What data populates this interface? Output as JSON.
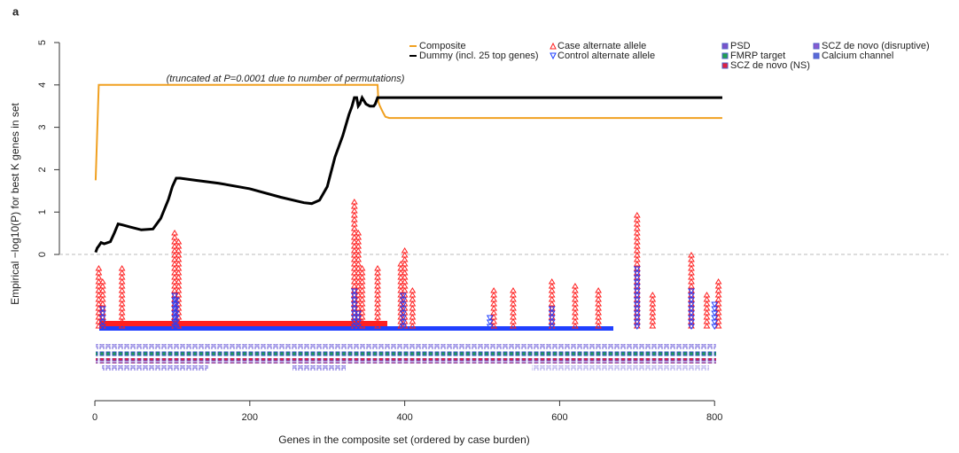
{
  "chart_data": {
    "type": "line",
    "panel_label": "a",
    "annotation": "(truncated at P=0.0001 due to number of permutations)",
    "y_label": "Empirical −log10(P) for best K genes in set",
    "x_label": "Genes in the composite set (ordered by case burden)",
    "xlim": [
      -10,
      820
    ],
    "xticks": [
      0,
      200,
      400,
      600,
      800
    ],
    "ylim": [
      -3.2,
      5
    ],
    "yticks": [
      0,
      1,
      2,
      3,
      4,
      5
    ],
    "series": [
      {
        "name": "Composite",
        "style": "line",
        "color": "#f0a020",
        "x": [
          1,
          5,
          8,
          365,
          366,
          368,
          372,
          375,
          380,
          810
        ],
        "values": [
          1.75,
          4.0,
          4.0,
          4.0,
          3.6,
          3.5,
          3.35,
          3.25,
          3.22,
          3.22
        ]
      },
      {
        "name": "Dummy (incl. 25 top genes)",
        "style": "line",
        "color": "#000000",
        "x": [
          1,
          3,
          5,
          8,
          12,
          20,
          25,
          30,
          35,
          45,
          60,
          75,
          85,
          95,
          100,
          105,
          110,
          130,
          160,
          200,
          240,
          270,
          280,
          290,
          300,
          310,
          320,
          328,
          332,
          335,
          338,
          340,
          342,
          345,
          350,
          355,
          360,
          362,
          365,
          370,
          810
        ],
        "values": [
          0.05,
          0.15,
          0.2,
          0.28,
          0.25,
          0.3,
          0.5,
          0.72,
          0.7,
          0.65,
          0.58,
          0.6,
          0.85,
          1.3,
          1.6,
          1.8,
          1.8,
          1.75,
          1.68,
          1.55,
          1.35,
          1.22,
          1.2,
          1.28,
          1.6,
          2.3,
          2.8,
          3.3,
          3.5,
          3.7,
          3.7,
          3.5,
          3.55,
          3.7,
          3.55,
          3.5,
          3.5,
          3.55,
          3.7,
          3.7,
          3.7
        ]
      },
      {
        "name": "Case alternate allele",
        "style": "triangle-up",
        "color": "#ff2020",
        "x": [
          5,
          10,
          35,
          103,
          108,
          335,
          340,
          345,
          365,
          395,
          400,
          410,
          515,
          540,
          590,
          620,
          650,
          700,
          720,
          770,
          790,
          805
        ],
        "values": [
          -0.3,
          -0.6,
          -0.3,
          0.6,
          0.3,
          1.3,
          0.6,
          -0.3,
          -0.3,
          -0.2,
          0.1,
          -0.8,
          -0.85,
          -0.8,
          -0.55,
          -0.7,
          -0.8,
          1.0,
          -0.9,
          0.05,
          -0.9,
          -0.6
        ]
      },
      {
        "name": "Control alternate allele",
        "style": "triangle-down",
        "color": "#2040ff",
        "x": [
          10,
          103,
          105,
          335,
          340,
          398,
          510,
          590,
          700,
          770,
          800
        ],
        "values": [
          -1.2,
          -0.9,
          -1.0,
          -0.8,
          -1.3,
          -0.9,
          -1.4,
          -1.2,
          -0.3,
          -0.8,
          -1.1
        ]
      }
    ],
    "gene_sets": [
      {
        "name": "PSD",
        "color": "#7b52c9"
      },
      {
        "name": "FMRP target",
        "color": "#20a050"
      },
      {
        "name": "SCZ de novo (NS)",
        "color": "#e02040"
      },
      {
        "name": "SCZ de novo (disruptive)",
        "color": "#8a5ad0"
      },
      {
        "name": "Calcium channel",
        "color": "#5a6ad8"
      }
    ]
  }
}
